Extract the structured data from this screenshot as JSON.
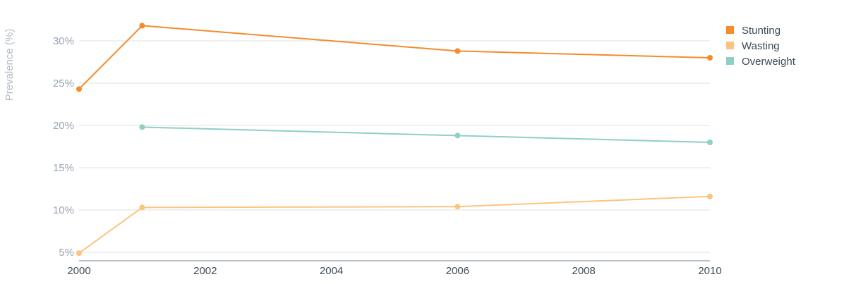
{
  "chart_data": {
    "type": "line",
    "ylabel": "Prevalence (%)",
    "xlabel": "",
    "xlim": [
      2000,
      2010
    ],
    "ylim": [
      4,
      33
    ],
    "x_ticks": [
      2000,
      2002,
      2004,
      2006,
      2008,
      2010
    ],
    "x_tick_labels": [
      "2000",
      "2002",
      "2004",
      "2006",
      "2008",
      "2010"
    ],
    "y_ticks": [
      5,
      10,
      15,
      20,
      25,
      30
    ],
    "y_tick_labels": [
      "5%",
      "10%",
      "15%",
      "20%",
      "25%",
      "30%"
    ],
    "grid": "horizontal",
    "legend_position": "top-right",
    "series": [
      {
        "name": "Stunting",
        "color": "#f58b2b",
        "points": [
          {
            "x": 2000,
            "y": 24.3
          },
          {
            "x": 2001,
            "y": 31.8
          },
          {
            "x": 2006,
            "y": 28.8
          },
          {
            "x": 2010,
            "y": 28.0
          }
        ]
      },
      {
        "name": "Wasting",
        "color": "#fdc47f",
        "points": [
          {
            "x": 2000,
            "y": 4.9
          },
          {
            "x": 2001,
            "y": 10.3
          },
          {
            "x": 2006,
            "y": 10.4
          },
          {
            "x": 2010,
            "y": 11.6
          }
        ]
      },
      {
        "name": "Overweight",
        "color": "#8fcfc6",
        "points": [
          {
            "x": 2001,
            "y": 19.8
          },
          {
            "x": 2006,
            "y": 18.8
          },
          {
            "x": 2010,
            "y": 18.0
          }
        ]
      }
    ]
  }
}
